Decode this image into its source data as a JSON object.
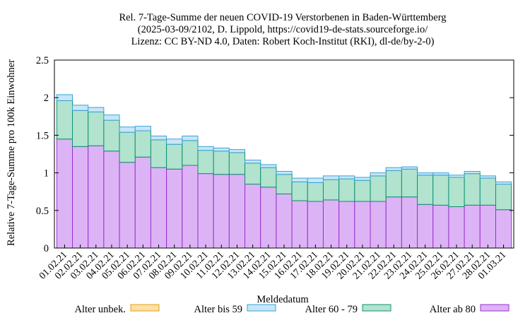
{
  "chart_data": {
    "type": "bar",
    "stacked": true,
    "title_lines": [
      "Rel. 7-Tage-Summe der neuen COVID-19 Verstorbenen in Baden-Württemberg",
      "(2025-03-09/2102, D. Lippold, https://covid19-de-stats.sourceforge.io/",
      "Lizenz: CC BY-ND 4.0, Daten: Robert Koch-Institut (RKI), dl-de/by-2-0)"
    ],
    "xlabel": "Meldedatum",
    "ylabel": "Relative 7-Tage-Summe pro 100k Einwohner",
    "ylim": [
      0,
      2.5
    ],
    "yticks": [
      "0",
      "0.5",
      "1",
      "1.5",
      "2",
      "2.5"
    ],
    "grid": false,
    "legend_position": "bottom",
    "categories": [
      "01.02.21",
      "02.02.21",
      "03.02.21",
      "04.02.21",
      "05.02.21",
      "06.02.21",
      "07.02.21",
      "08.02.21",
      "09.02.21",
      "10.02.21",
      "11.02.21",
      "12.02.21",
      "13.02.21",
      "14.02.21",
      "15.02.21",
      "16.02.21",
      "17.02.21",
      "18.02.21",
      "19.02.21",
      "20.02.21",
      "21.02.21",
      "22.02.21",
      "23.02.21",
      "24.02.21",
      "25.02.21",
      "26.02.21",
      "27.02.21",
      "28.02.21",
      "01.03.21"
    ],
    "series": [
      {
        "name": "Alter ab 80",
        "fill": "#dcb4f5",
        "stroke": "#9b2fd0",
        "values": [
          1.45,
          1.35,
          1.36,
          1.29,
          1.14,
          1.21,
          1.07,
          1.05,
          1.1,
          0.99,
          0.98,
          0.98,
          0.85,
          0.81,
          0.72,
          0.63,
          0.62,
          0.64,
          0.62,
          0.62,
          0.62,
          0.68,
          0.68,
          0.58,
          0.57,
          0.55,
          0.57,
          0.57,
          0.51
        ]
      },
      {
        "name": "Alter 60 - 79",
        "fill": "#b1e3cf",
        "stroke": "#109070",
        "values": [
          0.51,
          0.48,
          0.45,
          0.41,
          0.4,
          0.35,
          0.37,
          0.33,
          0.33,
          0.31,
          0.31,
          0.29,
          0.28,
          0.26,
          0.26,
          0.25,
          0.25,
          0.27,
          0.3,
          0.28,
          0.34,
          0.35,
          0.37,
          0.39,
          0.4,
          0.39,
          0.42,
          0.36,
          0.34
        ]
      },
      {
        "name": "Alter bis 59",
        "fill": "#c7e6f7",
        "stroke": "#3aa3d6",
        "values": [
          0.08,
          0.07,
          0.06,
          0.07,
          0.07,
          0.06,
          0.05,
          0.07,
          0.06,
          0.05,
          0.04,
          0.04,
          0.04,
          0.04,
          0.04,
          0.05,
          0.06,
          0.05,
          0.04,
          0.04,
          0.04,
          0.04,
          0.03,
          0.03,
          0.03,
          0.03,
          0.03,
          0.03,
          0.03
        ]
      },
      {
        "name": "Alter unbek.",
        "fill": "#fbe0a8",
        "stroke": "#e0a010",
        "values": [
          0,
          0,
          0,
          0,
          0,
          0,
          0,
          0,
          0,
          0,
          0,
          0,
          0,
          0,
          0,
          0,
          0,
          0,
          0,
          0,
          0,
          0,
          0,
          0,
          0,
          0,
          0,
          0,
          0
        ]
      }
    ],
    "legend_order": [
      "Alter unbek.",
      "Alter bis 59",
      "Alter 60 - 79",
      "Alter ab 80"
    ]
  }
}
